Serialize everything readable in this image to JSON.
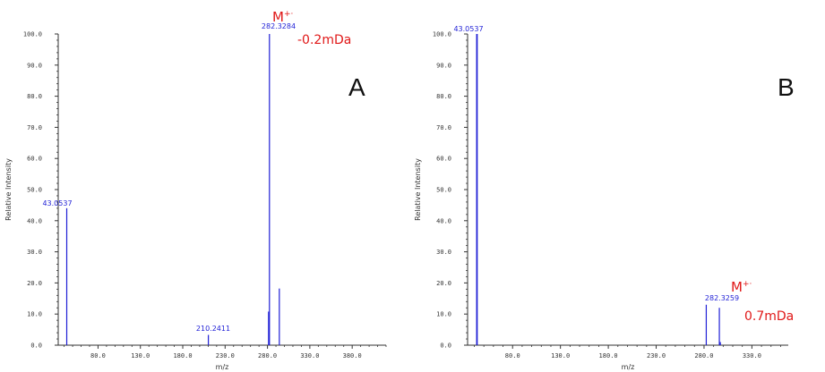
{
  "colors": {
    "axis": "#333333",
    "peak": "#1f1fd6",
    "annotation": "#e01818",
    "letter": "#111111"
  },
  "chart_data": [
    {
      "type": "bar",
      "panel": "A",
      "xlabel": "m/z",
      "ylabel": "Relative Intensity",
      "xlim": [
        33,
        420
      ],
      "ylim": [
        0,
        100
      ],
      "xticks": [
        "80.0",
        "130.0",
        "180.0",
        "230.0",
        "280.0",
        "330.0",
        "380.0"
      ],
      "yticks": [
        "0.0",
        "10.0",
        "20.0",
        "30.0",
        "40.0",
        "50.0",
        "60.0",
        "70.0",
        "80.0",
        "90.0",
        "100.0"
      ],
      "peaks": [
        {
          "x": 43.0537,
          "y": 44,
          "label": "43.0537"
        },
        {
          "x": 210.2411,
          "y": 3.3,
          "label": "210.2411"
        },
        {
          "x": 281.3,
          "y": 10.8,
          "label": ""
        },
        {
          "x": 282.3284,
          "y": 100,
          "label": "282.3284"
        },
        {
          "x": 294,
          "y": 18.2,
          "label": ""
        }
      ],
      "annotations": {
        "ion": "M",
        "ion_sup": "+·",
        "mass_error": "-0.2mDa"
      }
    },
    {
      "type": "bar",
      "panel": "B",
      "xlabel": "m/z",
      "ylabel": "Relative Intensity",
      "xlim": [
        33,
        368
      ],
      "ylim": [
        0,
        100
      ],
      "xticks": [
        "80.0",
        "130.0",
        "180.0",
        "230.0",
        "280.0",
        "330.0"
      ],
      "yticks": [
        "0.0",
        "10.0",
        "20.0",
        "30.0",
        "40.0",
        "50.0",
        "60.0",
        "70.0",
        "80.0",
        "90.0",
        "100.0"
      ],
      "peaks": [
        {
          "x": 42.5,
          "y": 100,
          "label": ""
        },
        {
          "x": 43.0537,
          "y": 100,
          "label": "43.0537"
        },
        {
          "x": 282.3259,
          "y": 13,
          "label": "282.3259"
        },
        {
          "x": 296,
          "y": 12,
          "label": ""
        },
        {
          "x": 297,
          "y": 1,
          "label": ""
        }
      ],
      "annotations": {
        "ion": "M",
        "ion_sup": "+·",
        "mass_error": "0.7mDa"
      }
    }
  ]
}
